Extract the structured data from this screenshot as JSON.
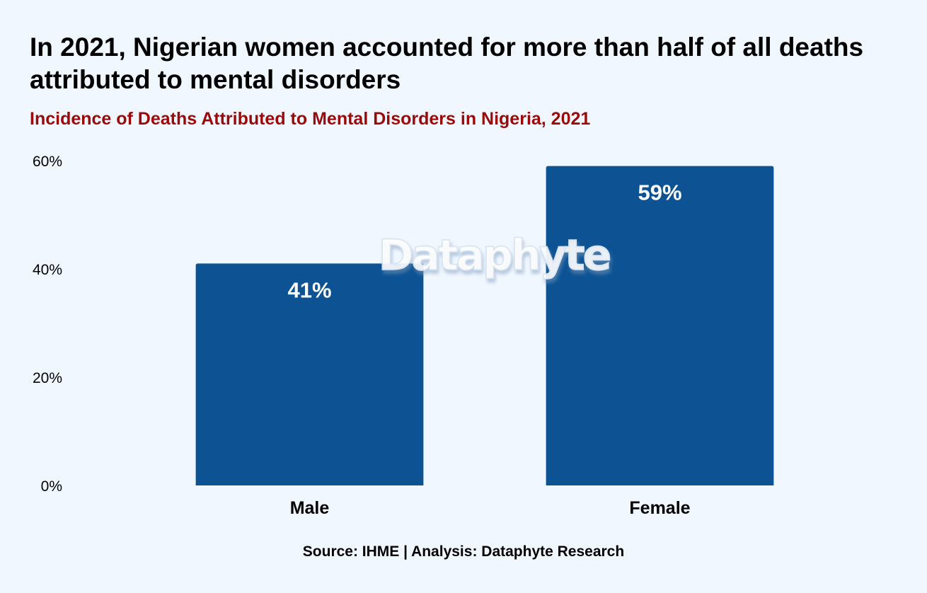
{
  "header": {
    "title": "In 2021, Nigerian women accounted for more than half of all deaths attributed to mental disorders",
    "subtitle": "Incidence of Deaths Attributed to Mental Disorders in Nigeria, 2021"
  },
  "watermark": {
    "text": "Dataphyte"
  },
  "footer": {
    "source": "Source: IHME | Analysis: Dataphyte Research"
  },
  "colors": {
    "background": "#F0F7FF",
    "bar": "#0D5394",
    "subtitle": "#9B0A0A",
    "bar_label": "#FFFFFF"
  },
  "chart_data": {
    "type": "bar",
    "title": "In 2021, Nigerian women accounted for more than half of all deaths attributed to mental disorders",
    "subtitle": "Incidence of Deaths Attributed to Mental Disorders in Nigeria, 2021",
    "categories": [
      "Male",
      "Female"
    ],
    "values": [
      41,
      59
    ],
    "value_labels": [
      "41%",
      "59%"
    ],
    "ylim": [
      0,
      60
    ],
    "yticks": [
      0,
      20,
      40,
      60
    ],
    "ytick_labels": [
      "0%",
      "20%",
      "40%",
      "60%"
    ],
    "xlabel": "",
    "ylabel": "",
    "grid": false,
    "legend": "none"
  }
}
